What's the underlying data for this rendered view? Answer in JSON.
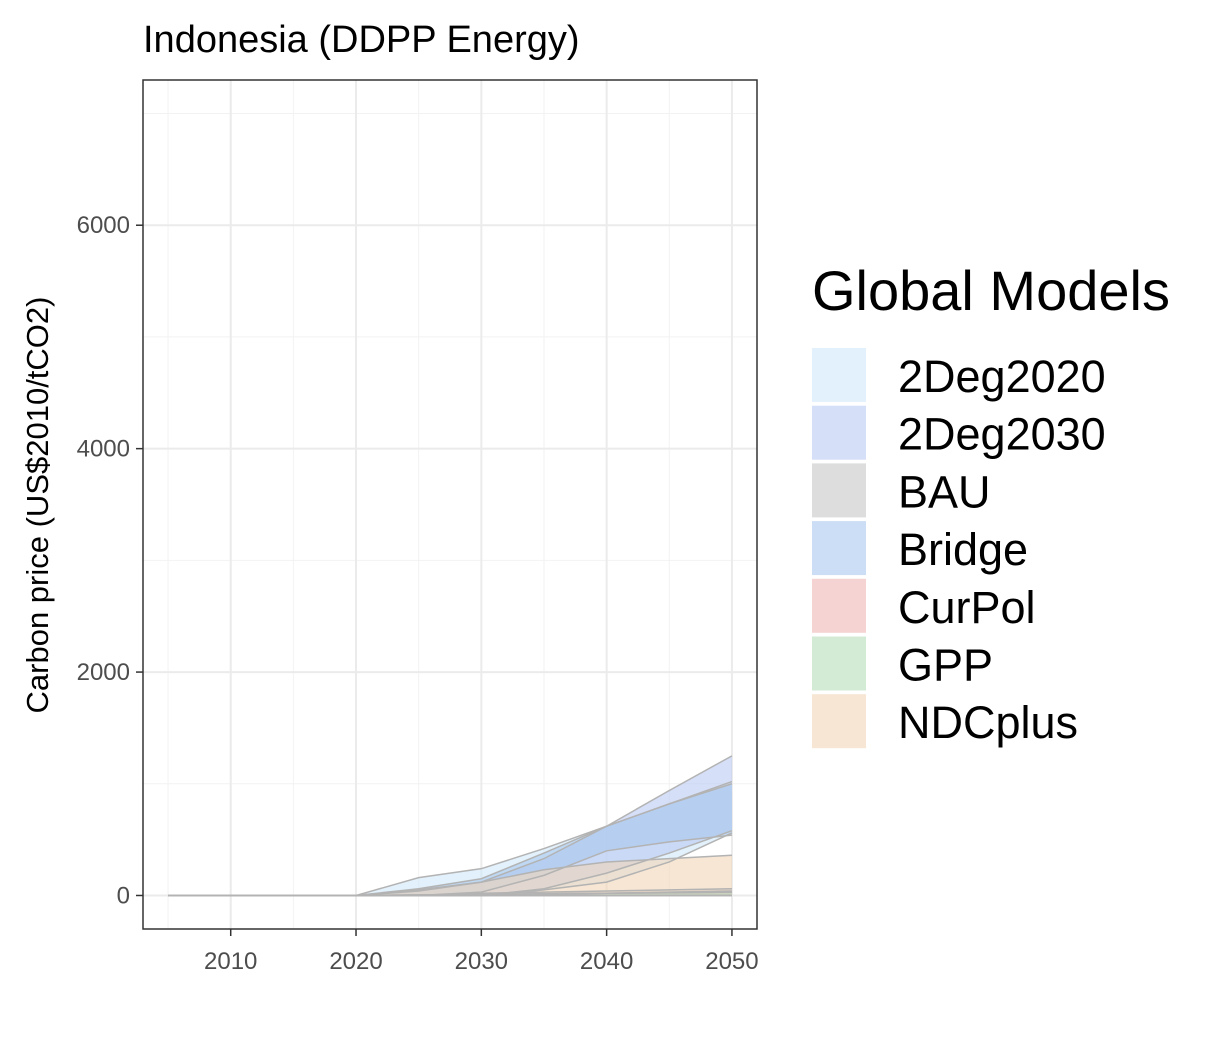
{
  "chart_data": {
    "type": "area",
    "title": "Indonesia (DDPP Energy)",
    "xlabel": "",
    "ylabel": "Carbon price (US$2010/tCO2)",
    "xlim": [
      2003,
      2052
    ],
    "ylim": [
      -300,
      7300
    ],
    "x_ticks": [
      2010,
      2020,
      2030,
      2040,
      2050
    ],
    "y_ticks": [
      0,
      2000,
      4000,
      6000
    ],
    "grid": true,
    "legend": {
      "title": "Global Models",
      "position": "right"
    },
    "line_color": "#b3b3b3",
    "series": [
      {
        "name": "2Deg2020",
        "color": "#cfe8f8",
        "x": [
          2005,
          2010,
          2015,
          2020,
          2025,
          2030,
          2035,
          2040,
          2045,
          2050
        ],
        "upper": [
          0,
          0,
          0,
          0,
          160,
          240,
          420,
          620,
          820,
          1020
        ],
        "lower": [
          0,
          0,
          0,
          0,
          0,
          0,
          50,
          120,
          300,
          560
        ]
      },
      {
        "name": "2Deg2030",
        "color": "#bac9f4",
        "x": [
          2005,
          2010,
          2015,
          2020,
          2025,
          2030,
          2035,
          2040,
          2045,
          2050
        ],
        "upper": [
          0,
          0,
          0,
          0,
          40,
          120,
          330,
          620,
          940,
          1250
        ],
        "lower": [
          0,
          0,
          0,
          0,
          0,
          0,
          60,
          200,
          380,
          580
        ]
      },
      {
        "name": "BAU",
        "color": "#c6c6c6",
        "x": [
          2005,
          2010,
          2015,
          2020,
          2025,
          2030,
          2035,
          2040,
          2045,
          2050
        ],
        "upper": [
          0,
          0,
          0,
          0,
          0,
          20,
          30,
          40,
          50,
          60
        ],
        "lower": [
          0,
          0,
          0,
          0,
          0,
          0,
          0,
          0,
          0,
          0
        ]
      },
      {
        "name": "Bridge",
        "color": "#a8c8ee",
        "x": [
          2005,
          2010,
          2015,
          2020,
          2025,
          2030,
          2035,
          2040,
          2045,
          2050
        ],
        "upper": [
          0,
          0,
          0,
          0,
          60,
          150,
          380,
          620,
          820,
          1000
        ],
        "lower": [
          0,
          0,
          0,
          0,
          0,
          30,
          180,
          400,
          480,
          540
        ]
      },
      {
        "name": "CurPol",
        "color": "#eeb5b5",
        "x": [
          2005,
          2010,
          2015,
          2020,
          2025,
          2030,
          2035,
          2040,
          2045,
          2050
        ],
        "upper": [
          0,
          0,
          0,
          0,
          5,
          10,
          15,
          20,
          25,
          30
        ],
        "lower": [
          0,
          0,
          0,
          0,
          0,
          0,
          0,
          0,
          0,
          0
        ]
      },
      {
        "name": "GPP",
        "color": "#b6dcb8",
        "x": [
          2005,
          2010,
          2015,
          2020,
          2025,
          2030,
          2035,
          2040,
          2045,
          2050
        ],
        "upper": [
          0,
          0,
          0,
          0,
          5,
          10,
          15,
          20,
          25,
          30
        ],
        "lower": [
          0,
          0,
          0,
          0,
          0,
          0,
          0,
          0,
          0,
          0
        ]
      },
      {
        "name": "NDCplus",
        "color": "#f2d6b8",
        "x": [
          2005,
          2010,
          2015,
          2020,
          2025,
          2030,
          2035,
          2040,
          2045,
          2050
        ],
        "upper": [
          0,
          0,
          0,
          0,
          50,
          120,
          230,
          300,
          330,
          360
        ],
        "lower": [
          0,
          0,
          0,
          0,
          0,
          0,
          10,
          20,
          30,
          40
        ]
      }
    ]
  }
}
